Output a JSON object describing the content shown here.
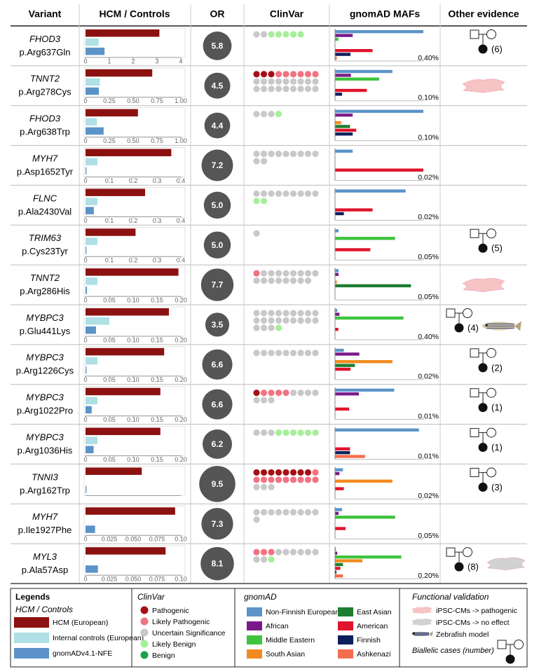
{
  "header": {
    "columns": [
      "Variant",
      "HCM / Controls",
      "OR",
      "ClinVar",
      "gnomAD MAFs",
      "Other evidence"
    ]
  },
  "legend": {
    "title": "Legends",
    "hcm": {
      "title": "HCM / Controls",
      "items": [
        {
          "label": "HCM (European)",
          "color": "#8c1111"
        },
        {
          "label": "Internal controls (European)",
          "color": "#aee0e6"
        },
        {
          "label": "gnomADv4.1-NFE",
          "color": "#5b93c8"
        }
      ]
    },
    "clinvar": {
      "title": "ClinVar",
      "items": [
        {
          "label": "Pathogenic",
          "color": "#a50f15"
        },
        {
          "label": "Likely Pathogenic",
          "color": "#f07382"
        },
        {
          "label": "Uncertain Significance",
          "color": "#c8c8c8"
        },
        {
          "label": "Likely Benign",
          "color": "#a6ee9a"
        },
        {
          "label": "Benign",
          "color": "#1aa34a"
        }
      ]
    },
    "gnomad": {
      "title": "gnomAD",
      "items": [
        {
          "label": "Non-Finnish European",
          "color": "#5b94c8"
        },
        {
          "label": "African",
          "color": "#7a1a8a"
        },
        {
          "label": "Middle Eastern",
          "color": "#3ec43e"
        },
        {
          "label": "South Asian",
          "color": "#f28b1f"
        },
        {
          "label": "East Asian",
          "color": "#1e7d32"
        },
        {
          "label": "American",
          "color": "#e0142c"
        },
        {
          "label": "Finnish",
          "color": "#0d1f5c"
        },
        {
          "label": "Ashkenazi",
          "color": "#f26e4c"
        }
      ]
    },
    "functional": {
      "title": "Functional validation",
      "items": [
        {
          "label": "iPSC-CMs -> pathogenic",
          "color": "#f6c4c4"
        },
        {
          "label": "iPSC-CMs -> no effect",
          "color": "#d2d2d2"
        },
        {
          "label": "Zebrafish model"
        }
      ],
      "biallelic": "Biallelic cases (number)"
    }
  },
  "rows": [
    {
      "gene": "FHOD3",
      "variant": "p.Arg637Gln",
      "hcm": {
        "values": [
          3.1,
          0.55,
          0.8
        ],
        "xlim": [
          0,
          4
        ],
        "xticks": [
          0,
          1,
          2,
          3,
          4
        ]
      },
      "or": "5.8",
      "clinvar": [
        0,
        0,
        2,
        5,
        0
      ],
      "gnomad": {
        "values": [
          0.4,
          0.08,
          0.015,
          0,
          0,
          0.17,
          0.07,
          0.008
        ],
        "max": {
          "value": 0.4,
          "label": "0.40%"
        }
      },
      "evidence": {
        "pedigree": "(6)"
      }
    },
    {
      "gene": "TNNT2",
      "variant": "p.Arg278Cys",
      "hcm": {
        "values": [
          0.7,
          0.15,
          0.14
        ],
        "xlim": [
          0,
          1
        ],
        "xticks": [
          0,
          0.25,
          {
            "value": 0.5,
            "label": "0.50"
          },
          0.75,
          {
            "value": 1,
            "label": "1.00"
          }
        ]
      },
      "or": "4.5",
      "clinvar": [
        3,
        6,
        18,
        0,
        0
      ],
      "gnomad": {
        "values": [
          0.065,
          0.018,
          0.05,
          0,
          0,
          0.036,
          0.008,
          0
        ],
        "max": {
          "value": 0.1,
          "label": "0.10%"
        }
      },
      "evidence": {
        "cell_color": "#f6c4c4"
      }
    },
    {
      "gene": "FHOD3",
      "variant": "p.Arg638Trp",
      "hcm": {
        "values": [
          0.55,
          0.12,
          0.19
        ],
        "xlim": [
          0,
          1
        ],
        "xticks": [
          0,
          0.25,
          {
            "value": 0.5,
            "label": "0.50"
          },
          0.75,
          {
            "value": 1,
            "label": "1.00"
          }
        ]
      },
      "or": "4.4",
      "clinvar": [
        0,
        0,
        3,
        1,
        0
      ],
      "gnomad": {
        "values": [
          0.1,
          0.02,
          0,
          0.007,
          0.017,
          0.024,
          0.02,
          0
        ],
        "max": {
          "value": 0.1,
          "label": "0.10%"
        }
      },
      "evidence": {}
    },
    {
      "gene": "MYH7",
      "variant": "p.Asp1652Tyr",
      "hcm": {
        "values": [
          0.36,
          0.05,
          0.004
        ],
        "xlim": [
          0,
          0.4
        ],
        "xticks": [
          0,
          0.1,
          0.2,
          0.3,
          0.4
        ]
      },
      "or": "7.2",
      "clinvar": [
        0,
        0,
        11,
        0,
        0
      ],
      "gnomad": {
        "values": [
          0.004,
          0,
          0,
          0,
          0,
          0.02,
          0,
          0
        ],
        "max": {
          "value": 0.02,
          "label": "0.02%"
        }
      },
      "evidence": {}
    },
    {
      "gene": "FLNC",
      "variant": "p.Ala2430Val",
      "hcm": {
        "values": [
          0.25,
          0.05,
          0.035
        ],
        "xlim": [
          0,
          0.4
        ],
        "xticks": [
          0,
          0.1,
          0.2,
          0.3,
          0.4
        ]
      },
      "or": "5.0",
      "clinvar": [
        0,
        0,
        9,
        2,
        0
      ],
      "gnomad": {
        "values": [
          0.016,
          0,
          0,
          0,
          0,
          0.0085,
          0.002,
          0
        ],
        "max": {
          "value": 0.02,
          "label": "0.02%"
        }
      },
      "evidence": {}
    },
    {
      "gene": "TRIM63",
      "variant": "p.Cys23Tyr",
      "hcm": {
        "values": [
          0.21,
          0.05,
          0.004
        ],
        "xlim": [
          0,
          0.4
        ],
        "xticks": [
          0,
          0.1,
          0.2,
          0.3,
          0.4
        ]
      },
      "or": "5.0",
      "clinvar": [
        0,
        0,
        1,
        0,
        0
      ],
      "gnomad": {
        "values": [
          0.002,
          0,
          0.034,
          0,
          0,
          0.02,
          0,
          0
        ],
        "max": {
          "value": 0.05,
          "label": "0.05%"
        }
      },
      "evidence": {
        "pedigree": "(5)"
      }
    },
    {
      "gene": "TNNT2",
      "variant": "p.Arg286His",
      "hcm": {
        "values": [
          0.195,
          0.025,
          0.003
        ],
        "xlim": [
          0,
          0.2
        ],
        "xticks": [
          0,
          0.05,
          {
            "value": 0.1,
            "label": "0.10"
          },
          0.15,
          {
            "value": 0.2,
            "label": "0.20"
          }
        ]
      },
      "or": "7.7",
      "clinvar": [
        0,
        1,
        16,
        0,
        0
      ],
      "gnomad": {
        "values": [
          0.002,
          0.002,
          0,
          0.001,
          0.043,
          0,
          0,
          0
        ],
        "max": {
          "value": 0.05,
          "label": "0.05%"
        }
      },
      "evidence": {
        "cell_color": "#f6c4c4"
      }
    },
    {
      "gene": "MYBPC3",
      "variant": "p.Glu441Lys",
      "hcm": {
        "values": [
          0.175,
          0.05,
          0.022
        ],
        "xlim": [
          0,
          0.2
        ],
        "xticks": [
          0,
          0.05,
          {
            "value": 0.1,
            "label": "0.10"
          },
          0.15,
          {
            "value": 0.2,
            "label": "0.20"
          }
        ]
      },
      "or": "3.5",
      "clinvar": [
        0,
        0,
        21,
        1,
        0
      ],
      "gnomad": {
        "values": [
          0.01,
          0.02,
          0.31,
          0,
          0,
          0.015,
          0,
          0
        ],
        "max": {
          "value": 0.4,
          "label": "0.40%"
        }
      },
      "evidence": {
        "pedigree": "(4)",
        "zebrafish": true
      }
    },
    {
      "gene": "MYBPC3",
      "variant": "p.Arg1226Cys",
      "hcm": {
        "values": [
          0.165,
          0.025,
          0.002
        ],
        "xlim": [
          0,
          0.2
        ],
        "xticks": [
          0,
          0.05,
          {
            "value": 0.1,
            "label": "0.10"
          },
          0.15,
          {
            "value": 0.2,
            "label": "0.20"
          }
        ]
      },
      "or": "6.6",
      "clinvar": [
        0,
        0,
        9,
        0,
        0
      ],
      "gnomad": {
        "values": [
          0.002,
          0.0055,
          0,
          0.013,
          0.0045,
          0.0035,
          0,
          0
        ],
        "max": {
          "value": 0.02,
          "label": "0.02%"
        }
      },
      "evidence": {
        "pedigree": "(2)"
      }
    },
    {
      "gene": "MYBPC3",
      "variant": "p.Arg1022Pro",
      "hcm": {
        "values": [
          0.157,
          0.025,
          0.013
        ],
        "xlim": [
          0,
          0.2
        ],
        "xticks": [
          0,
          0.05,
          {
            "value": 0.1,
            "label": "0.10"
          },
          0.15,
          {
            "value": 0.2,
            "label": "0.20"
          }
        ]
      },
      "or": "6.6",
      "clinvar": [
        1,
        4,
        7,
        0,
        0
      ],
      "gnomad": {
        "values": [
          0.0067,
          0.0027,
          0,
          0,
          0,
          0.0016,
          0,
          0
        ],
        "max": {
          "value": 0.01,
          "label": "0.01%"
        }
      },
      "evidence": {
        "pedigree": "(1)"
      }
    },
    {
      "gene": "MYBPC3",
      "variant": "p.Arg1036His",
      "hcm": {
        "values": [
          0.157,
          0.025,
          0.017
        ],
        "xlim": [
          0,
          0.2
        ],
        "xticks": [
          0,
          0.05,
          {
            "value": 0.1,
            "label": "0.10"
          },
          0.15,
          {
            "value": 0.2,
            "label": "0.20"
          }
        ]
      },
      "or": "6.2",
      "clinvar": [
        0,
        0,
        3,
        6,
        0
      ],
      "gnomad": {
        "values": [
          0.0095,
          0,
          0,
          0,
          0,
          0.0017,
          0.0017,
          0.0034
        ],
        "max": {
          "value": 0.01,
          "label": "0.01%"
        }
      },
      "evidence": {
        "pedigree": "(1)"
      }
    },
    {
      "gene": "TNNI3",
      "variant": "p.Arg162Trp",
      "hcm": {
        "values": [
          0.118,
          0,
          0.002
        ],
        "xlim": [
          0,
          0.2
        ],
        "xticks": []
      },
      "or": "9.5",
      "clinvar": [
        8,
        10,
        3,
        0,
        0
      ],
      "gnomad": {
        "values": [
          0.0018,
          0.001,
          0,
          0.013,
          0,
          0.002,
          0,
          0
        ],
        "max": {
          "value": 0.02,
          "label": "0.02%"
        }
      },
      "evidence": {
        "pedigree": "(3)"
      }
    },
    {
      "gene": "MYH7",
      "variant": "p.Ile1927Phe",
      "hcm": {
        "values": [
          0.094,
          0,
          0.01
        ],
        "xlim": [
          0,
          0.1
        ],
        "xticks": [
          0,
          0.025,
          {
            "value": 0.05,
            "label": "0.050"
          },
          0.075,
          {
            "value": 0.1,
            "label": "0.10"
          }
        ]
      },
      "or": "7.3",
      "clinvar": [
        0,
        0,
        10,
        0,
        0
      ],
      "gnomad": {
        "values": [
          0.004,
          0.002,
          0.034,
          0,
          0,
          0.006,
          0,
          0
        ],
        "max": {
          "value": 0.05,
          "label": "0.05%"
        }
      },
      "evidence": {}
    },
    {
      "gene": "MYL3",
      "variant": "p.Ala57Asp",
      "hcm": {
        "values": [
          0.084,
          0,
          0.013
        ],
        "xlim": [
          0,
          0.1
        ],
        "xticks": [
          0,
          0.025,
          {
            "value": 0.05,
            "label": "0.050"
          },
          0.075,
          {
            "value": 0.1,
            "label": "0.10"
          }
        ]
      },
      "or": "8.1",
      "clinvar": [
        0,
        3,
        8,
        1,
        0
      ],
      "gnomad": {
        "values": [
          0.002,
          0.005,
          0.15,
          0.062,
          0.018,
          0.012,
          0.003,
          0.018
        ],
        "max": {
          "value": 0.2,
          "label": "0.20%"
        }
      },
      "evidence": {
        "pedigree": "(8)",
        "cell_color": "#d2d2d2"
      }
    }
  ]
}
